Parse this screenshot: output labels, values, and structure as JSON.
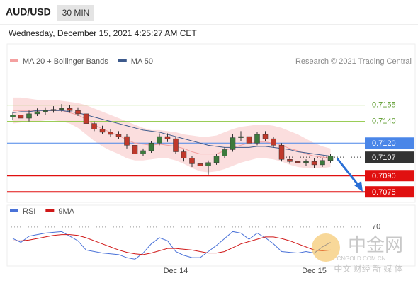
{
  "header": {
    "symbol": "AUD/USD",
    "timeframe": "30 MIN",
    "timestamp": "Wednesday, December 15, 2021 4:25:27 AM CET"
  },
  "chart_data": [
    {
      "type": "candlestick",
      "legend": [
        {
          "name": "MA 20 + Bollinger Bands",
          "color": "#f4a0a0"
        },
        {
          "name": "MA 50",
          "color": "#3d5a8c"
        }
      ],
      "credit": "Research © 2021 Trading Central",
      "categories": [
        null,
        null,
        null,
        null,
        null,
        null,
        null,
        null,
        null,
        null,
        null,
        null,
        null,
        null,
        null,
        null,
        null,
        null,
        null,
        null,
        "Dec 14",
        null,
        null,
        null,
        null,
        null,
        null,
        null,
        null,
        null,
        null,
        null,
        null,
        null,
        null,
        null,
        null,
        "Dec 15",
        null,
        null
      ],
      "open": [
        0.7144,
        0.7146,
        0.7143,
        0.7147,
        0.7149,
        0.715,
        0.7151,
        0.7152,
        0.715,
        0.7147,
        0.7138,
        0.7133,
        0.713,
        0.7128,
        0.7126,
        0.7118,
        0.711,
        0.7113,
        0.712,
        0.7126,
        0.7124,
        0.7112,
        0.7106,
        0.7101,
        0.7099,
        0.7102,
        0.7108,
        0.7114,
        0.7125,
        0.7126,
        0.712,
        0.7128,
        0.7124,
        0.7118,
        0.7105,
        0.7103,
        0.7102,
        0.7103,
        0.71,
        0.7104
      ],
      "high": [
        0.7149,
        0.7149,
        0.715,
        0.7152,
        0.7153,
        0.7154,
        0.7156,
        0.7155,
        0.7153,
        0.7149,
        0.714,
        0.7136,
        0.7133,
        0.7131,
        0.7128,
        0.712,
        0.7115,
        0.7122,
        0.7129,
        0.7129,
        0.7126,
        0.7114,
        0.7108,
        0.7104,
        0.7104,
        0.711,
        0.7116,
        0.7128,
        0.7131,
        0.7129,
        0.713,
        0.7131,
        0.7126,
        0.712,
        0.7108,
        0.7106,
        0.7105,
        0.7106,
        0.7106,
        0.711
      ],
      "low": [
        0.7141,
        0.7141,
        0.714,
        0.7145,
        0.7146,
        0.7148,
        0.7149,
        0.7148,
        0.7145,
        0.7135,
        0.7131,
        0.7128,
        0.7126,
        0.7124,
        0.7115,
        0.7106,
        0.7108,
        0.7111,
        0.7118,
        0.7121,
        0.711,
        0.7103,
        0.7098,
        0.7096,
        0.7091,
        0.71,
        0.7106,
        0.7112,
        0.7122,
        0.7118,
        0.7118,
        0.7122,
        0.7116,
        0.7103,
        0.7101,
        0.71,
        0.7099,
        0.7097,
        0.7098,
        0.7102
      ],
      "close": [
        0.7146,
        0.7143,
        0.7147,
        0.7149,
        0.715,
        0.7151,
        0.7152,
        0.715,
        0.7147,
        0.7138,
        0.7133,
        0.713,
        0.7128,
        0.7126,
        0.7118,
        0.711,
        0.7113,
        0.712,
        0.7126,
        0.7124,
        0.7112,
        0.7106,
        0.7101,
        0.7099,
        0.7102,
        0.7108,
        0.7114,
        0.7125,
        0.7126,
        0.712,
        0.7128,
        0.7124,
        0.7118,
        0.7105,
        0.7103,
        0.7102,
        0.7103,
        0.71,
        0.7104,
        0.7108
      ],
      "up_color": "#3c7a3c",
      "down_color": "#c0392b",
      "bands": {
        "color": "#fbdede",
        "upper": [
          0.7162,
          0.7162,
          0.7161,
          0.716,
          0.716,
          0.716,
          0.7159,
          0.7158,
          0.7157,
          0.7155,
          0.7152,
          0.7149,
          0.7146,
          0.7143,
          0.714,
          0.7137,
          0.7134,
          0.7132,
          0.7132,
          0.7131,
          0.713,
          0.7128,
          0.7127,
          0.7126,
          0.7126,
          0.7127,
          0.713,
          0.7133,
          0.7135,
          0.7136,
          0.7137,
          0.7137,
          0.7136,
          0.7134,
          0.7131,
          0.7128,
          0.7124,
          0.712,
          0.7117,
          0.7115
        ],
        "lower": [
          0.7138,
          0.7139,
          0.714,
          0.714,
          0.7141,
          0.7141,
          0.714,
          0.7138,
          0.7134,
          0.7128,
          0.7122,
          0.7117,
          0.7113,
          0.711,
          0.7106,
          0.7104,
          0.7104,
          0.7105,
          0.7106,
          0.7106,
          0.7104,
          0.7101,
          0.7097,
          0.7094,
          0.7093,
          0.7094,
          0.7096,
          0.7099,
          0.7102,
          0.7104,
          0.7106,
          0.7106,
          0.7105,
          0.7103,
          0.71,
          0.7098,
          0.7097,
          0.7097,
          0.7097,
          0.7098
        ]
      },
      "series": [
        {
          "name": "MA 20",
          "color": "#f4a0a0",
          "values": [
            0.715,
            0.715,
            0.715,
            0.715,
            0.715,
            0.715,
            0.715,
            0.7148,
            0.7146,
            0.7142,
            0.7137,
            0.7133,
            0.713,
            0.7127,
            0.7123,
            0.712,
            0.7119,
            0.7118,
            0.7119,
            0.7118,
            0.7117,
            0.7115,
            0.7112,
            0.711,
            0.711,
            0.711,
            0.7113,
            0.7116,
            0.7118,
            0.712,
            0.7121,
            0.7121,
            0.712,
            0.7118,
            0.7115,
            0.7113,
            0.711,
            0.7108,
            0.7107,
            0.7106
          ]
        },
        {
          "name": "MA 50",
          "color": "#3d5a8c",
          "values": [
            0.7148,
            0.7149,
            0.7149,
            0.715,
            0.715,
            0.715,
            0.715,
            0.7149,
            0.7148,
            0.7146,
            0.7144,
            0.7142,
            0.714,
            0.7138,
            0.7136,
            0.7134,
            0.7132,
            0.7131,
            0.713,
            0.7128,
            0.7126,
            0.7124,
            0.7122,
            0.712,
            0.7118,
            0.7117,
            0.7116,
            0.7116,
            0.7116,
            0.7116,
            0.7117,
            0.7117,
            0.7116,
            0.7115,
            0.7114,
            0.7112,
            0.7111,
            0.711,
            0.7109,
            0.7108
          ]
        }
      ],
      "levels": [
        {
          "value": 0.7155,
          "color": "#8cc63f",
          "style": "line"
        },
        {
          "value": {
            "value": 0.714,
            "label": "0.7140"
          },
          "color": "#8cc63f",
          "style": "line"
        },
        {
          "value": {
            "value": 0.712,
            "label": "0.7120"
          },
          "color": "#4a86e8",
          "style": "box"
        },
        {
          "value": 0.7107,
          "color": "#333333",
          "style": "dotted"
        },
        {
          "value": {
            "value": 0.709,
            "label": "0.7090"
          },
          "color": "#e01010",
          "style": "box"
        },
        {
          "value": 0.7075,
          "color": "#e01010",
          "style": "box"
        }
      ],
      "ylim": [
        0.7066,
        0.719
      ]
    },
    {
      "type": "line",
      "series": [
        {
          "name": "RSI",
          "color": "#4a72d8",
          "values": [
            55,
            50,
            58,
            60,
            62,
            63,
            64,
            58,
            52,
            40,
            38,
            36,
            35,
            34,
            30,
            28,
            36,
            48,
            56,
            52,
            38,
            33,
            30,
            30,
            38,
            46,
            55,
            64,
            62,
            54,
            62,
            56,
            48,
            38,
            37,
            36,
            38,
            36,
            44,
            50
          ]
        },
        {
          "name": "9MA",
          "color": "#d01818",
          "values": [
            52,
            52,
            53,
            55,
            57,
            59,
            60,
            60,
            59,
            56,
            52,
            48,
            44,
            40,
            37,
            35,
            34,
            36,
            39,
            42,
            42,
            41,
            40,
            38,
            36,
            36,
            38,
            43,
            48,
            51,
            54,
            57,
            57,
            55,
            52,
            48,
            44,
            40,
            39,
            40
          ]
        }
      ],
      "ylim": [
        20,
        80
      ],
      "yticks": [
        70
      ]
    }
  ],
  "watermark": {
    "brand": "中金网",
    "site": "CNGOLD.COM.CN",
    "slogan": "中文 财经 新 媒 体"
  }
}
